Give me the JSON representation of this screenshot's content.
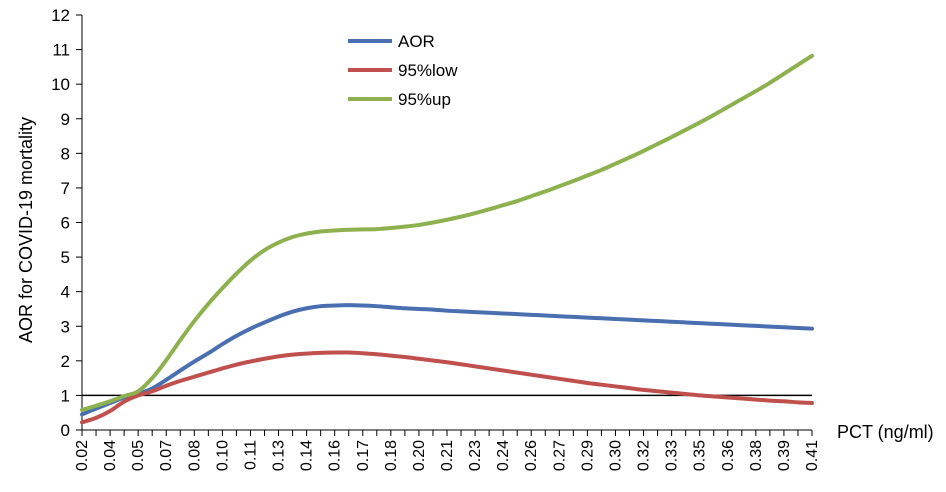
{
  "chart_data": {
    "type": "line",
    "title": "",
    "xlabel": "PCT (ng/ml)",
    "ylabel": "AOR for COVID-19 mortality",
    "ylim": [
      0,
      12
    ],
    "yticks": [
      0,
      1,
      2,
      3,
      4,
      5,
      6,
      7,
      8,
      9,
      10,
      11,
      12
    ],
    "x": [
      "0.02",
      "0.03",
      "0.04",
      "0.05",
      "0.05",
      "0.06",
      "0.07",
      "0.08",
      "0.08",
      "0.09",
      "0.10",
      "0.10",
      "0.11",
      "0.12",
      "0.13",
      "0.13",
      "0.14",
      "0.15",
      "0.16",
      "0.16",
      "0.17",
      "0.18",
      "0.18",
      "0.19",
      "0.20",
      "0.21",
      "0.21",
      "0.22",
      "0.23",
      "0.24",
      "0.24",
      "0.25",
      "0.26",
      "0.27",
      "0.27",
      "0.28",
      "0.29",
      "0.30",
      "0.30",
      "0.31",
      "0.32",
      "0.32",
      "0.33",
      "0.34",
      "0.35",
      "0.35",
      "0.36",
      "0.37",
      "0.38",
      "0.38",
      "0.39",
      "0.40",
      "0.41"
    ],
    "reference_line": 1,
    "legend_position": "top-center",
    "series": [
      {
        "name": "AOR",
        "color": "#4a6fb0",
        "values": [
          0.45,
          0.62,
          0.78,
          0.94,
          1.05,
          1.2,
          1.45,
          1.72,
          1.98,
          2.22,
          2.48,
          2.72,
          2.93,
          3.11,
          3.28,
          3.42,
          3.52,
          3.58,
          3.6,
          3.61,
          3.6,
          3.58,
          3.55,
          3.52,
          3.5,
          3.48,
          3.45,
          3.43,
          3.41,
          3.39,
          3.37,
          3.35,
          3.33,
          3.31,
          3.29,
          3.27,
          3.25,
          3.23,
          3.21,
          3.19,
          3.17,
          3.15,
          3.13,
          3.11,
          3.09,
          3.07,
          3.05,
          3.03,
          3.01,
          2.99,
          2.97,
          2.95,
          2.93
        ]
      },
      {
        "name": "95%low",
        "color": "#c0504d",
        "values": [
          0.22,
          0.35,
          0.55,
          0.82,
          1.0,
          1.12,
          1.28,
          1.42,
          1.54,
          1.66,
          1.78,
          1.89,
          1.98,
          2.06,
          2.13,
          2.18,
          2.21,
          2.23,
          2.24,
          2.24,
          2.22,
          2.19,
          2.15,
          2.11,
          2.06,
          2.01,
          1.96,
          1.9,
          1.84,
          1.78,
          1.72,
          1.66,
          1.6,
          1.54,
          1.48,
          1.42,
          1.36,
          1.31,
          1.26,
          1.21,
          1.16,
          1.12,
          1.08,
          1.04,
          1.0,
          0.97,
          0.94,
          0.91,
          0.88,
          0.85,
          0.83,
          0.8,
          0.78
        ]
      },
      {
        "name": "95%up",
        "color": "#8cb14e",
        "values": [
          0.58,
          0.7,
          0.83,
          0.98,
          1.12,
          1.5,
          2.02,
          2.6,
          3.15,
          3.65,
          4.1,
          4.52,
          4.9,
          5.2,
          5.42,
          5.58,
          5.68,
          5.74,
          5.77,
          5.79,
          5.8,
          5.81,
          5.84,
          5.88,
          5.93,
          6.0,
          6.08,
          6.17,
          6.27,
          6.38,
          6.5,
          6.62,
          6.76,
          6.9,
          7.05,
          7.2,
          7.36,
          7.52,
          7.7,
          7.88,
          8.07,
          8.27,
          8.47,
          8.68,
          8.89,
          9.11,
          9.34,
          9.57,
          9.8,
          10.04,
          10.3,
          10.56,
          10.82
        ]
      }
    ]
  }
}
